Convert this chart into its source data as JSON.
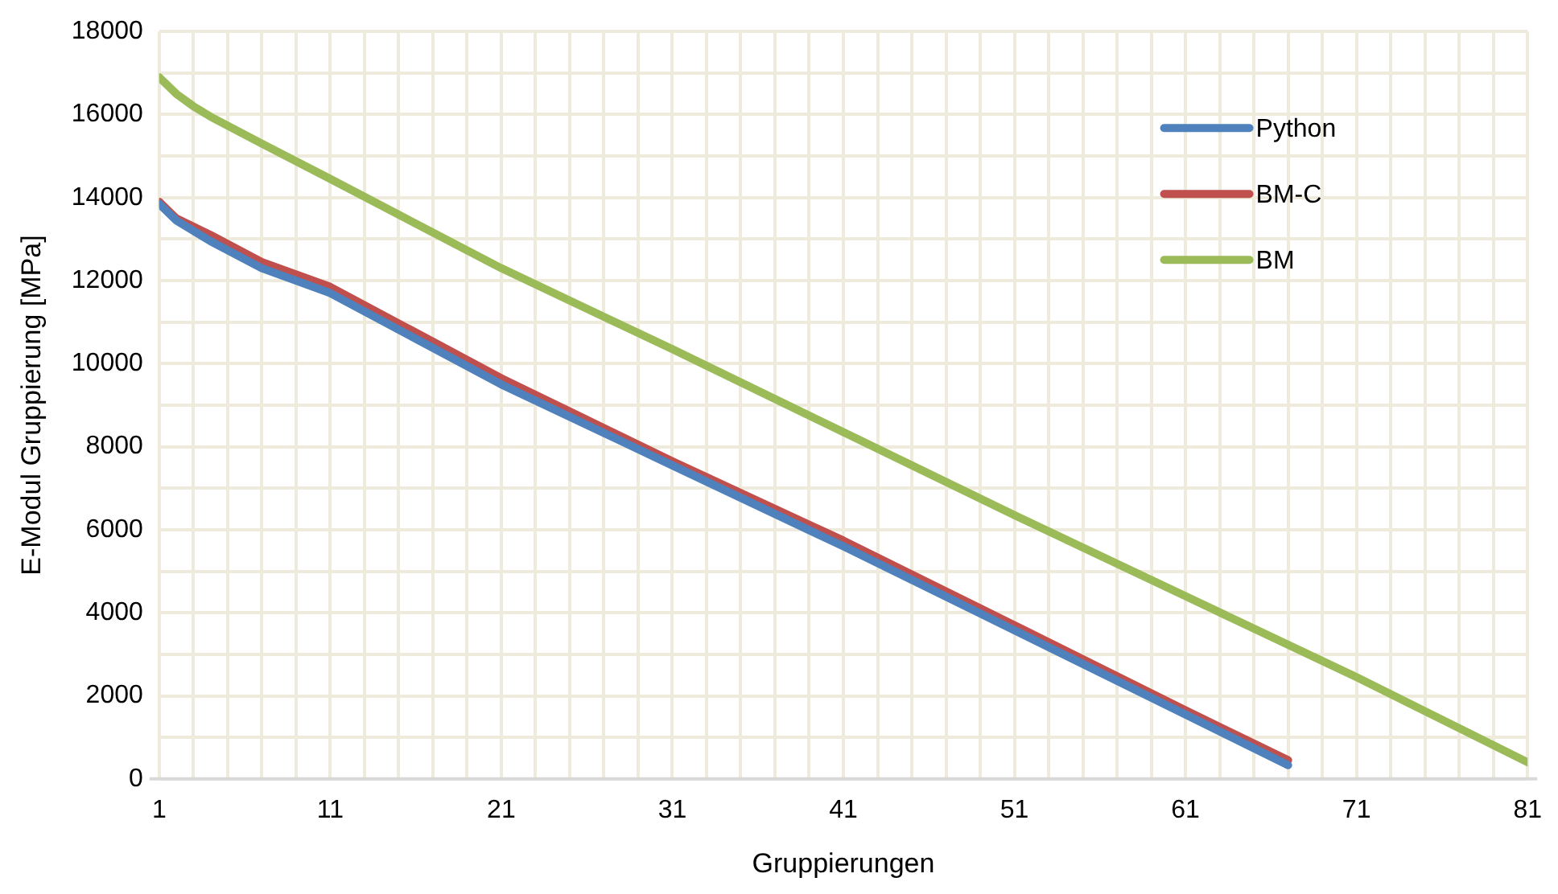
{
  "chart_data": {
    "type": "line",
    "xlabel": "Gruppierungen",
    "ylabel": "E-Modul Gruppierung [MPa]",
    "xlim": [
      1,
      81
    ],
    "xticks": [
      1,
      {
        "value": 3,
        "label": null
      },
      {
        "value": 5,
        "label": null
      },
      {
        "value": 7,
        "label": null
      },
      {
        "value": 9,
        "label": null
      },
      11,
      {
        "value": 13,
        "label": null
      },
      {
        "value": 15,
        "label": null
      },
      {
        "value": 17,
        "label": null
      },
      {
        "value": 19,
        "label": null
      },
      21,
      {
        "value": 23,
        "label": null
      },
      {
        "value": 25,
        "label": null
      },
      {
        "value": 27,
        "label": null
      },
      {
        "value": 29,
        "label": null
      },
      31,
      {
        "value": 33,
        "label": null
      },
      {
        "value": 35,
        "label": null
      },
      {
        "value": 37,
        "label": null
      },
      {
        "value": 39,
        "label": null
      },
      41,
      {
        "value": 43,
        "label": null
      },
      {
        "value": 45,
        "label": null
      },
      {
        "value": 47,
        "label": null
      },
      {
        "value": 49,
        "label": null
      },
      51,
      {
        "value": 53,
        "label": null
      },
      {
        "value": 55,
        "label": null
      },
      {
        "value": 57,
        "label": null
      },
      {
        "value": 59,
        "label": null
      },
      61,
      {
        "value": 63,
        "label": null
      },
      {
        "value": 65,
        "label": null
      },
      {
        "value": 67,
        "label": null
      },
      {
        "value": 69,
        "label": null
      },
      71,
      {
        "value": 73,
        "label": null
      },
      {
        "value": 75,
        "label": null
      },
      {
        "value": 77,
        "label": null
      },
      {
        "value": 79,
        "label": null
      },
      81
    ],
    "ylim": [
      0,
      18000
    ],
    "yticks": [
      0,
      {
        "value": 1000,
        "label": null
      },
      2000,
      {
        "value": 3000,
        "label": null
      },
      4000,
      {
        "value": 5000,
        "label": null
      },
      6000,
      {
        "value": 7000,
        "label": null
      },
      8000,
      {
        "value": 9000,
        "label": null
      },
      10000,
      {
        "value": 11000,
        "label": null
      },
      12000,
      {
        "value": 13000,
        "label": null
      },
      14000,
      {
        "value": 15000,
        "label": null
      },
      16000,
      {
        "value": 17000,
        "label": null
      },
      18000
    ],
    "grid": true,
    "legend": "top right",
    "marker": "none",
    "line_style": "solid",
    "series": [
      {
        "name": "Python",
        "color": "#4f81bd",
        "x": [
          1,
          2,
          4,
          7,
          11,
          21,
          31,
          41,
          51,
          61,
          67
        ],
        "values": [
          13850,
          13450,
          12950,
          12300,
          11700,
          9500,
          7550,
          5600,
          3580,
          1550,
          330
        ]
      },
      {
        "name": "BM-C",
        "color": "#c0504d",
        "x": [
          1,
          2,
          4,
          7,
          11,
          21,
          31,
          41,
          51,
          61,
          67
        ],
        "values": [
          13900,
          13500,
          13100,
          12450,
          11850,
          9650,
          7650,
          5740,
          3700,
          1650,
          450
        ]
      },
      {
        "name": "BM",
        "color": "#9bbb59",
        "x": [
          1,
          2,
          3,
          4,
          7,
          11,
          21,
          31,
          41,
          51,
          61,
          71,
          81
        ],
        "values": [
          16900,
          16500,
          16200,
          15950,
          15300,
          14450,
          12300,
          10350,
          8350,
          6350,
          4400,
          2450,
          400
        ]
      }
    ]
  }
}
